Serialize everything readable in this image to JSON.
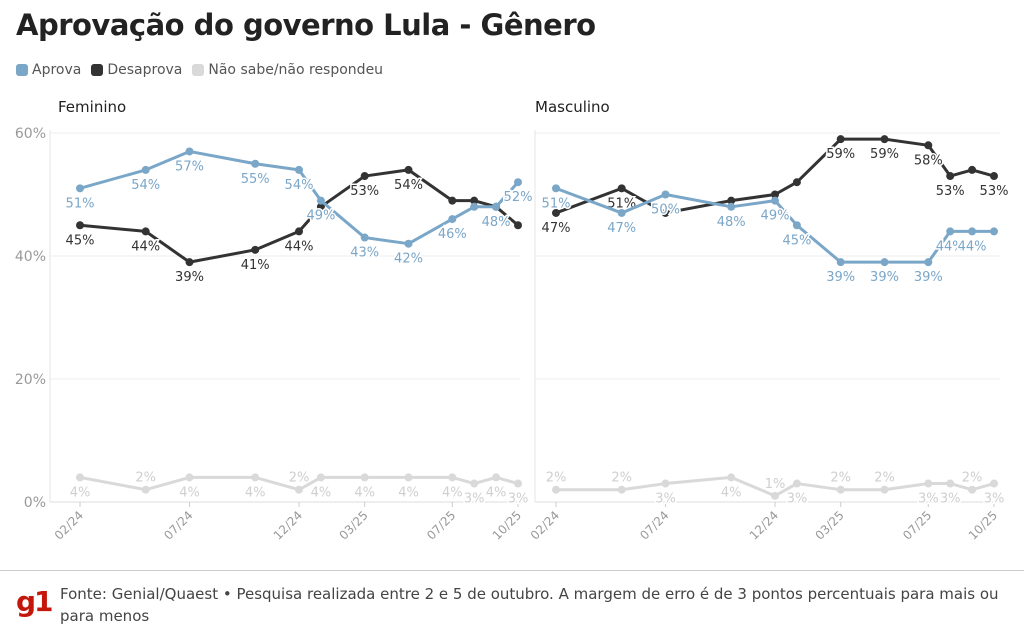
{
  "title": "Aprovação do governo Lula - Gênero",
  "legend": [
    {
      "name": "Aprova",
      "color": "#7aa6c8"
    },
    {
      "name": "Desaprova",
      "color": "#333333"
    },
    {
      "name": "Não sabe/não respondeu",
      "color": "#d9d9d9"
    }
  ],
  "footer": {
    "logo": "g1",
    "source": "Fonte: Genial/Quaest • Pesquisa realizada entre 2 e 5 de outubro. A margem de erro é de 3 pontos percentuais para mais ou para menos"
  },
  "chart_data": [
    {
      "type": "line",
      "title": "Feminino",
      "ylim": [
        0,
        60
      ],
      "yticks": [
        "0%",
        "20%",
        "40%",
        "60%"
      ],
      "x": [
        "02/24",
        "05/24",
        "07/24",
        "10/24",
        "12/24",
        "01/25",
        "03/25",
        "05/25",
        "07/25",
        "08/25",
        "09/25",
        "10/25"
      ],
      "xticks": [
        "02/24",
        "07/24",
        "12/24",
        "03/25",
        "07/25",
        "10/25"
      ],
      "series": [
        {
          "name": "Aprova",
          "values": [
            51,
            54,
            57,
            55,
            54,
            49,
            43,
            42,
            46,
            48,
            48,
            52
          ],
          "labels": [
            "51%",
            "54%",
            "57%",
            "55%",
            "54%",
            "49%",
            "43%",
            "42%",
            "46%",
            null,
            "48%",
            "52%"
          ]
        },
        {
          "name": "Desaprova",
          "values": [
            45,
            44,
            39,
            41,
            44,
            48,
            53,
            54,
            49,
            49,
            48,
            45
          ],
          "labels": [
            "45%",
            "44%",
            "39%",
            "41%",
            "44%",
            null,
            "53%",
            "54%",
            null,
            null,
            null,
            null
          ]
        },
        {
          "name": "Não sabe/não respondeu",
          "values": [
            4,
            2,
            4,
            4,
            2,
            4,
            4,
            4,
            4,
            3,
            4,
            3
          ],
          "labels": [
            "4%",
            "2%",
            "4%",
            "4%",
            "2%",
            "4%",
            "4%",
            "4%",
            "4%",
            "3%",
            "4%",
            "3%"
          ]
        }
      ]
    },
    {
      "type": "line",
      "title": "Masculino",
      "ylim": [
        0,
        60
      ],
      "yticks": [
        "0%",
        "20%",
        "40%",
        "60%"
      ],
      "x": [
        "02/24",
        "05/24",
        "07/24",
        "10/24",
        "12/24",
        "01/25",
        "03/25",
        "05/25",
        "07/25",
        "08/25",
        "09/25",
        "10/25"
      ],
      "xticks": [
        "02/24",
        "07/24",
        "12/24",
        "03/25",
        "07/25",
        "10/25"
      ],
      "series": [
        {
          "name": "Aprova",
          "values": [
            51,
            47,
            50,
            48,
            49,
            45,
            39,
            39,
            39,
            44,
            44,
            44
          ],
          "labels": [
            "51%",
            "47%",
            "50%",
            "48%",
            "49%",
            "45%",
            "39%",
            "39%",
            "39%",
            "44%",
            "44%",
            null
          ]
        },
        {
          "name": "Desaprova",
          "values": [
            47,
            51,
            47,
            49,
            50,
            52,
            59,
            59,
            58,
            53,
            54,
            53
          ],
          "labels": [
            "47%",
            "51%",
            null,
            null,
            null,
            null,
            "59%",
            "59%",
            "58%",
            "53%",
            null,
            "53%"
          ]
        },
        {
          "name": "Não sabe/não respondeu",
          "values": [
            2,
            2,
            3,
            4,
            1,
            3,
            2,
            2,
            3,
            3,
            2,
            3
          ],
          "labels": [
            "2%",
            "2%",
            "3%",
            "4%",
            "1%",
            "3%",
            "2%",
            "2%",
            "3%",
            "3%",
            "2%",
            "3%"
          ]
        }
      ]
    }
  ]
}
